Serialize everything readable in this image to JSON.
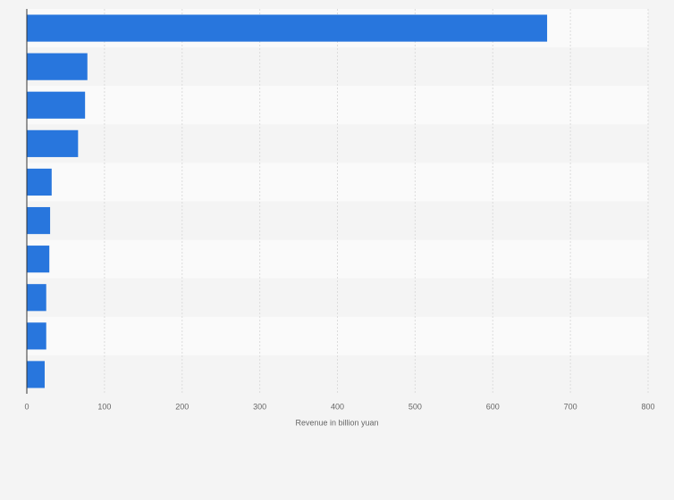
{
  "chart_data": {
    "type": "bar",
    "orientation": "horizontal",
    "categories": [
      null,
      null,
      null,
      null,
      null,
      null,
      null,
      null,
      null,
      null
    ],
    "values": [
      670,
      78,
      75,
      66,
      32,
      30,
      29,
      25,
      25,
      23
    ],
    "color": "#2876dd",
    "xlabel": "Revenue in billion yuan",
    "xlim": [
      0,
      800
    ],
    "xticks": [
      0,
      100,
      200,
      300,
      400,
      500,
      600,
      700,
      800
    ],
    "grid": true
  }
}
